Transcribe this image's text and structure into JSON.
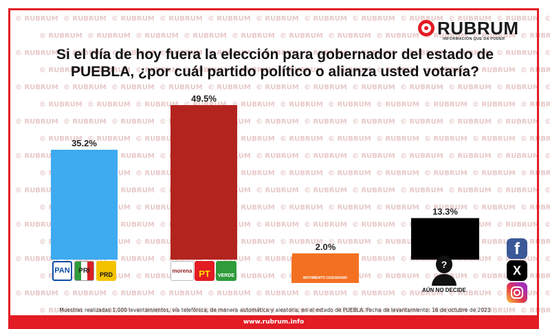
{
  "title": "Si el día de hoy fuera la elección para gobernador del estado de PUEBLA, ¿por cuál  partido político o alianza usted votaría?",
  "brand": {
    "name": "RUBRUM",
    "tagline": "INFORMACIÓN QUE DA PODER",
    "watermark": "RUBRUM",
    "url": "www.rubrum.info"
  },
  "colors": {
    "accent": "#e31b23",
    "pan": "#0a4ea3",
    "pri": "#d91f26",
    "prd": "#f3c300",
    "morena": "#8c1b1b",
    "pt": "#e31b23",
    "verde": "#2e9c3a",
    "mc": "#f37021"
  },
  "chart_data": {
    "type": "bar",
    "categories": [
      "PAN-PRI-PRD",
      "MORENA-PT-VERDE",
      "MOVIMIENTO CIUDADANO",
      "AÚN NO DECIDE"
    ],
    "values": [
      35.2,
      49.5,
      2.0,
      13.3
    ],
    "value_labels": [
      "35.2%",
      "49.5%",
      "2.0%",
      "13.3%"
    ],
    "bar_colors": [
      "#3eaaf0",
      "#b3241f",
      "#f37021",
      "#000000"
    ],
    "ylim": [
      0,
      49.5
    ],
    "grid": false,
    "legend": "none"
  },
  "party_logos": {
    "pan": "PAN",
    "pri": "PRI",
    "prd": "PRD",
    "morena": "morena",
    "pt": "PT",
    "verde": "VERDE",
    "mc": "MOVIMIENTO CIUDADANO",
    "undecided_icon": "?",
    "undecided_label": "AÚN NO DECIDE"
  },
  "social": {
    "facebook": "f",
    "x": "X"
  },
  "footnote": "Muestras realizadas 1,000 levantamientos, vía telefónica, de manera automática y aleatoria, en el estado de PUEBLA. Fecha de levantamiento: 16 de octubre de 2023"
}
